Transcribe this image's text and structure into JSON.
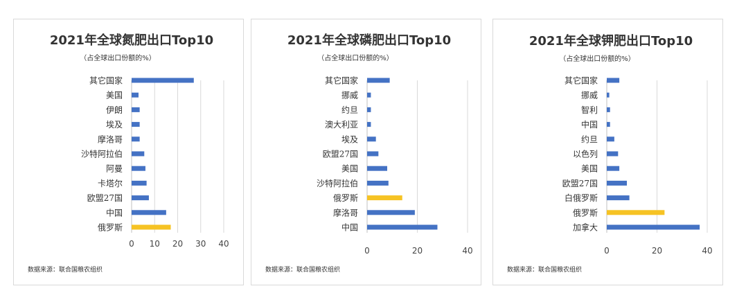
{
  "colors": {
    "default_bar": "#4472C4",
    "highlight_bar": "#F6C324",
    "grid": "#d9d9d9"
  },
  "chart_data": [
    {
      "type": "bar",
      "orientation": "horizontal",
      "title": "2021年全球氮肥出口Top10",
      "subtitle": "（占全球出口份额的%）",
      "source": "数据来源：联合国粮农组织",
      "categories": [
        "其它国家",
        "美国",
        "伊朗",
        "埃及",
        "摩洛哥",
        "沙特阿拉伯",
        "阿曼",
        "卡塔尔",
        "欧盟27国",
        "中国",
        "俄罗斯"
      ],
      "values": [
        27,
        3,
        3.5,
        3.5,
        3.5,
        5.5,
        6,
        6.5,
        7.5,
        15,
        17
      ],
      "highlight": [
        "俄罗斯"
      ],
      "xlim": [
        0,
        40
      ],
      "xticks": [
        0,
        10,
        20,
        30,
        40
      ],
      "grid": true
    },
    {
      "type": "bar",
      "orientation": "horizontal",
      "title": "2021年全球磷肥出口Top10",
      "subtitle": "（占全球出口份额的%）",
      "source": "数据来源：联合国粮农组织",
      "categories": [
        "其它国家",
        "挪威",
        "约旦",
        "澳大利亚",
        "埃及",
        "欧盟27国",
        "美国",
        "沙特阿拉伯",
        "俄罗斯",
        "摩洛哥",
        "中国"
      ],
      "values": [
        9,
        1.5,
        1.5,
        1.5,
        3.5,
        4.5,
        8,
        8.5,
        14,
        19,
        28
      ],
      "highlight": [
        "俄罗斯"
      ],
      "xlim": [
        0,
        40
      ],
      "xticks": [
        0,
        20,
        40
      ],
      "grid": true
    },
    {
      "type": "bar",
      "orientation": "horizontal",
      "title": "2021年全球钾肥出口Top10",
      "subtitle": "（占全球出口份额的%）",
      "source": "数据来源：联合国粮农组织",
      "categories": [
        "其它国家",
        "挪威",
        "智利",
        "中国",
        "约旦",
        "以色列",
        "美国",
        "欧盟27国",
        "白俄罗斯",
        "俄罗斯",
        "加拿大"
      ],
      "values": [
        5,
        1,
        1.3,
        1.3,
        3,
        4.5,
        5,
        8,
        9,
        23,
        37
      ],
      "highlight": [
        "俄罗斯"
      ],
      "xlim": [
        0,
        40
      ],
      "xticks": [
        0,
        20,
        40
      ],
      "grid": true
    }
  ]
}
